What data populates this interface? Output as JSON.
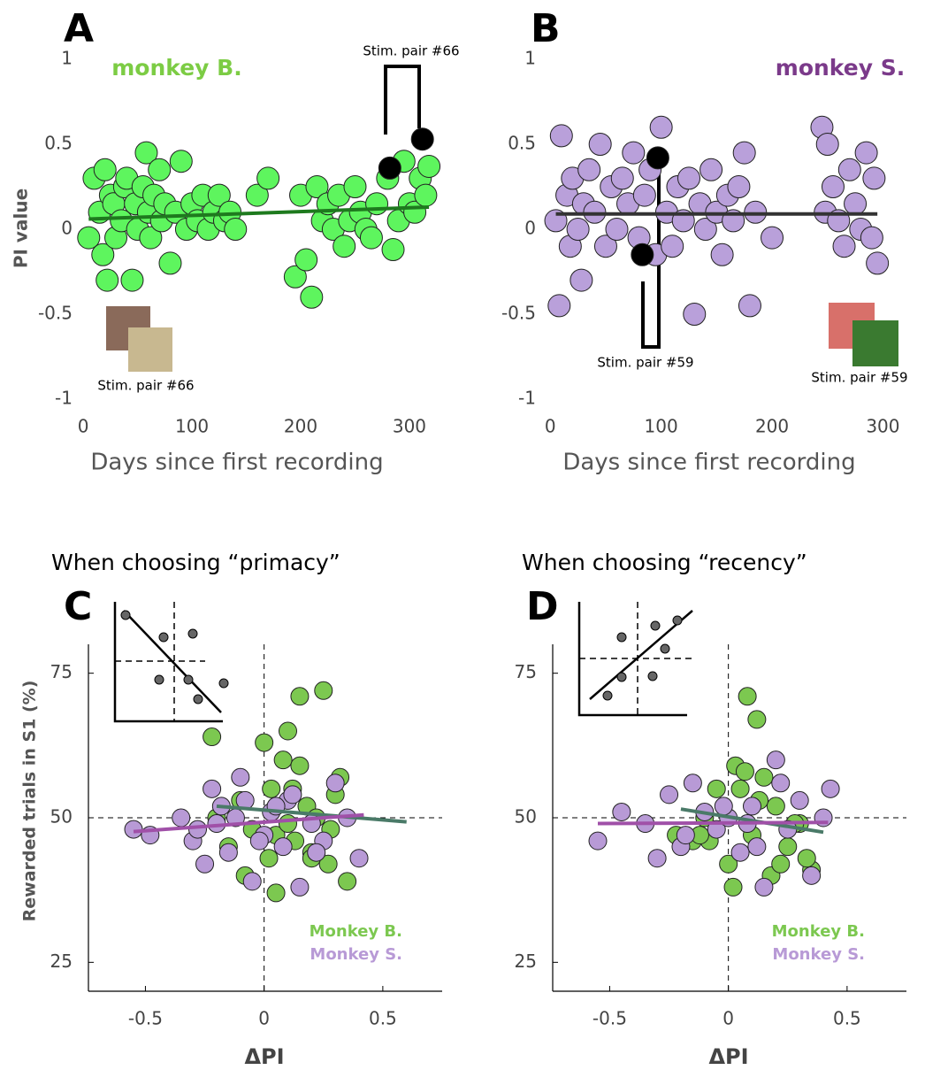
{
  "chart_data": [
    {
      "type": "scatter",
      "label": "A",
      "ylabel": "PI value",
      "xlabel": "Days since first recording",
      "xlim": [
        -5,
        322
      ],
      "ylim": [
        -1,
        1
      ],
      "xticks": [
        0,
        100,
        200,
        300
      ],
      "yticks": [
        -1,
        -0.5,
        0,
        0.5,
        1
      ],
      "axis_lines": false,
      "series": [
        {
          "name": "monkey B.",
          "color": "#5ef55e",
          "legend_color": "#7ccc44",
          "x": [
            5,
            10,
            15,
            18,
            20,
            22,
            25,
            28,
            30,
            35,
            38,
            40,
            45,
            48,
            50,
            55,
            58,
            60,
            62,
            65,
            70,
            72,
            75,
            80,
            85,
            90,
            95,
            100,
            105,
            110,
            115,
            120,
            125,
            130,
            135,
            140,
            160,
            170,
            195,
            200,
            205,
            210,
            215,
            220,
            225,
            230,
            235,
            240,
            245,
            250,
            255,
            260,
            265,
            270,
            280,
            285,
            290,
            295,
            300,
            305,
            310,
            315,
            318
          ],
          "values": [
            -0.05,
            0.3,
            0.1,
            -0.15,
            0.35,
            -0.3,
            0.2,
            0.15,
            -0.05,
            0.05,
            0.25,
            0.3,
            -0.3,
            0.15,
            0.0,
            0.25,
            0.45,
            0.1,
            -0.05,
            0.2,
            0.35,
            0.05,
            0.15,
            -0.2,
            0.1,
            0.4,
            0.0,
            0.15,
            0.05,
            0.2,
            0.0,
            0.1,
            0.2,
            0.05,
            0.1,
            0.0,
            0.2,
            0.3,
            -0.28,
            0.2,
            -0.18,
            -0.4,
            0.25,
            0.05,
            0.15,
            0.0,
            0.2,
            -0.1,
            0.05,
            0.25,
            0.1,
            0.0,
            -0.05,
            0.15,
            0.3,
            -0.12,
            0.05,
            0.4,
            0.15,
            0.1,
            0.3,
            0.2,
            0.37
          ]
        },
        {
          "color": "#000000",
          "x": [
            282,
            312
          ],
          "values": [
            0.36,
            0.53
          ]
        }
      ],
      "fits": [
        {
          "color": "#1e7a1e",
          "x": [
            5,
            318
          ],
          "y": [
            0.06,
            0.13
          ]
        }
      ],
      "annotations": [
        "Stim. pair #66",
        "Stim. pair #66"
      ]
    },
    {
      "type": "scatter",
      "label": "B",
      "xlabel": "Days since first recording",
      "xlim": [
        -5,
        322
      ],
      "ylim": [
        -1,
        1
      ],
      "xticks": [
        0,
        100,
        200,
        300
      ],
      "yticks": [
        -1,
        -0.5,
        0,
        0.5,
        1
      ],
      "axis_lines": false,
      "series": [
        {
          "name": "monkey S.",
          "color": "#b9a0da",
          "legend_color": "#7b3a8a",
          "x": [
            5,
            8,
            10,
            15,
            18,
            20,
            25,
            28,
            30,
            35,
            40,
            45,
            50,
            55,
            60,
            65,
            70,
            75,
            80,
            85,
            90,
            95,
            100,
            105,
            110,
            115,
            120,
            125,
            130,
            135,
            140,
            145,
            150,
            155,
            160,
            165,
            170,
            175,
            180,
            185,
            200,
            245,
            248,
            250,
            255,
            260,
            265,
            270,
            275,
            280,
            285,
            290,
            292,
            295
          ],
          "values": [
            0.05,
            -0.45,
            0.55,
            0.2,
            -0.1,
            0.3,
            0.0,
            -0.3,
            0.15,
            0.35,
            0.1,
            0.5,
            -0.1,
            0.25,
            0.0,
            0.3,
            0.15,
            0.45,
            -0.05,
            0.2,
            0.35,
            -0.15,
            0.6,
            0.1,
            -0.1,
            0.25,
            0.05,
            0.3,
            -0.5,
            0.15,
            0.0,
            0.35,
            0.1,
            -0.15,
            0.2,
            0.05,
            0.25,
            0.45,
            -0.45,
            0.1,
            -0.05,
            0.6,
            0.1,
            0.5,
            0.25,
            0.05,
            -0.1,
            0.35,
            0.15,
            0.0,
            0.45,
            -0.05,
            0.3,
            -0.2
          ]
        },
        {
          "color": "#000000",
          "x": [
            83,
            97
          ],
          "values": [
            -0.15,
            0.42
          ]
        }
      ],
      "fits": [
        {
          "color": "#333333",
          "x": [
            5,
            295
          ],
          "y": [
            0.09,
            0.09
          ]
        }
      ],
      "annotations": [
        "Stim. pair #59",
        "Stim. pair #59"
      ]
    },
    {
      "type": "scatter",
      "label": "C",
      "title": "When choosing “primacy”",
      "ylabel": "Rewarded trials in S1  (%)",
      "xlabel": "ΔPI",
      "xlim": [
        -0.74,
        0.75
      ],
      "ylim": [
        20,
        80
      ],
      "xticks": [
        -0.5,
        0,
        0.5
      ],
      "yticks": [
        25,
        50,
        75
      ],
      "axis_lines": true,
      "vline": 0,
      "hline": 50,
      "series": [
        {
          "name": "Monkey B.",
          "color": "#7cc850",
          "legend_color": "#7cc850",
          "x": [
            -0.2,
            -0.15,
            -0.1,
            -0.05,
            0.0,
            0.02,
            0.05,
            0.08,
            0.1,
            0.12,
            0.15,
            0.18,
            0.2,
            0.22,
            0.25,
            0.27,
            0.3,
            0.32,
            0.35,
            -0.08,
            0.05,
            0.1,
            0.15,
            0.2,
            0.28,
            0.03,
            0.13,
            -0.22
          ],
          "values": [
            50,
            45,
            53,
            48,
            63,
            43,
            37,
            60,
            65,
            55,
            71,
            52,
            44,
            50,
            72,
            42,
            54,
            57,
            39,
            40,
            47,
            49,
            59,
            43,
            48,
            55,
            46,
            64
          ]
        },
        {
          "name": "Monkey S.",
          "color": "#b89ad6",
          "legend_color": "#b89ad6",
          "x": [
            -0.55,
            -0.48,
            -0.35,
            -0.3,
            -0.25,
            -0.22,
            -0.2,
            -0.18,
            -0.15,
            -0.12,
            -0.1,
            -0.05,
            0.0,
            0.03,
            0.08,
            0.1,
            0.15,
            0.2,
            0.25,
            0.3,
            0.35,
            0.4,
            -0.28,
            -0.08,
            0.12,
            0.22,
            0.05,
            -0.02
          ],
          "values": [
            48,
            47,
            50,
            46,
            42,
            55,
            49,
            52,
            44,
            50,
            57,
            39,
            47,
            51,
            45,
            53,
            38,
            49,
            46,
            56,
            50,
            43,
            48,
            53,
            54,
            44,
            52,
            46
          ]
        }
      ],
      "fits": [
        {
          "color": "#4a7a68",
          "x": [
            -0.2,
            0.6
          ],
          "y": [
            52,
            49.3
          ]
        },
        {
          "color": "#a050a8",
          "x": [
            -0.55,
            0.42
          ],
          "y": [
            47.6,
            50.5
          ]
        }
      ]
    },
    {
      "type": "scatter",
      "label": "D",
      "title": "When choosing “recency”",
      "xlabel": "ΔPI",
      "xlim": [
        -0.74,
        0.75
      ],
      "ylim": [
        20,
        80
      ],
      "xticks": [
        -0.5,
        0,
        0.5
      ],
      "yticks": [
        25,
        50,
        75
      ],
      "axis_lines": true,
      "vline": 0,
      "hline": 50,
      "series": [
        {
          "name": "Monkey B.",
          "color": "#7cc850",
          "legend_color": "#7cc850",
          "x": [
            -0.22,
            -0.15,
            -0.1,
            -0.05,
            0.0,
            0.02,
            0.05,
            0.08,
            0.1,
            0.12,
            0.15,
            0.18,
            0.2,
            0.25,
            0.3,
            0.35,
            -0.08,
            0.03,
            0.13,
            0.22,
            0.28,
            0.33,
            0.07,
            -0.12
          ],
          "values": [
            47,
            46,
            50,
            55,
            42,
            38,
            55,
            71,
            47,
            67,
            57,
            40,
            52,
            45,
            49,
            41,
            46,
            59,
            53,
            42,
            49,
            43,
            58,
            47
          ]
        },
        {
          "name": "Monkey S.",
          "color": "#b89ad6",
          "legend_color": "#b89ad6",
          "x": [
            -0.55,
            -0.45,
            -0.35,
            -0.3,
            -0.25,
            -0.2,
            -0.15,
            -0.1,
            -0.05,
            0.0,
            0.05,
            0.1,
            0.15,
            0.2,
            0.25,
            0.3,
            0.35,
            0.4,
            0.43,
            -0.18,
            0.12,
            0.22,
            -0.02,
            0.08
          ],
          "values": [
            46,
            51,
            49,
            43,
            54,
            45,
            56,
            51,
            48,
            50,
            44,
            52,
            38,
            60,
            48,
            53,
            40,
            50,
            55,
            47,
            45,
            56,
            52,
            49
          ]
        }
      ],
      "fits": [
        {
          "color": "#4a7a68",
          "x": [
            -0.2,
            0.4
          ],
          "y": [
            51.5,
            47.5
          ]
        },
        {
          "color": "#a050a8",
          "x": [
            -0.55,
            0.42
          ],
          "y": [
            49,
            49.2
          ]
        }
      ]
    }
  ]
}
